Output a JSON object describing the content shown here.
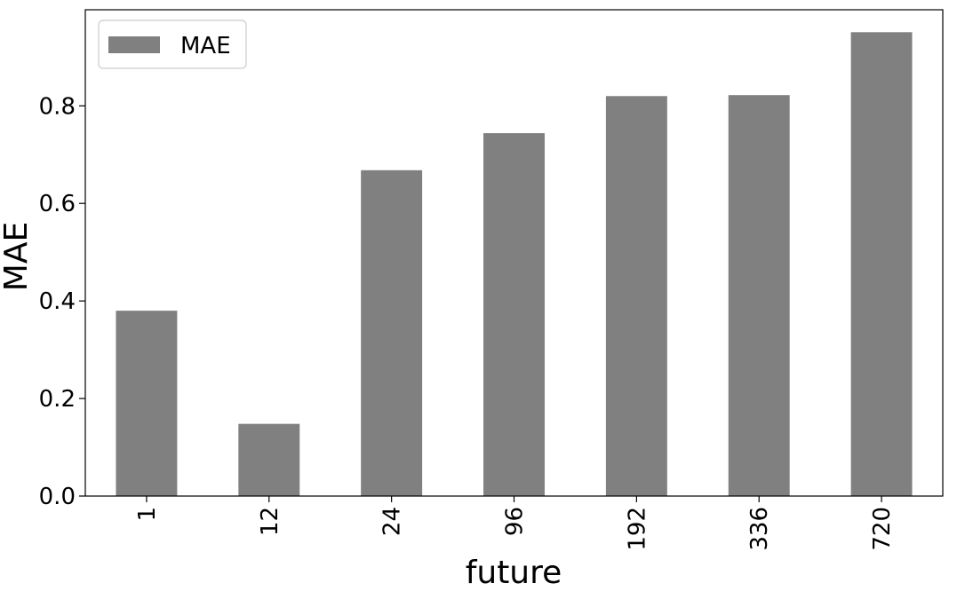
{
  "chart_data": {
    "type": "bar",
    "categories": [
      "1",
      "12",
      "24",
      "96",
      "192",
      "336",
      "720"
    ],
    "series": [
      {
        "name": "MAE",
        "values": [
          0.38,
          0.148,
          0.668,
          0.744,
          0.82,
          0.822,
          0.951
        ]
      }
    ],
    "title": "",
    "xlabel": "future",
    "ylabel": "MAE",
    "ylim": [
      0,
      0.997
    ],
    "yticks": [
      "0.0",
      "0.2",
      "0.4",
      "0.6",
      "0.8"
    ],
    "grid": false,
    "legend_position": "top-left",
    "colors": {
      "bar": "#808080",
      "axes": "#000000",
      "background": "#ffffff"
    }
  }
}
